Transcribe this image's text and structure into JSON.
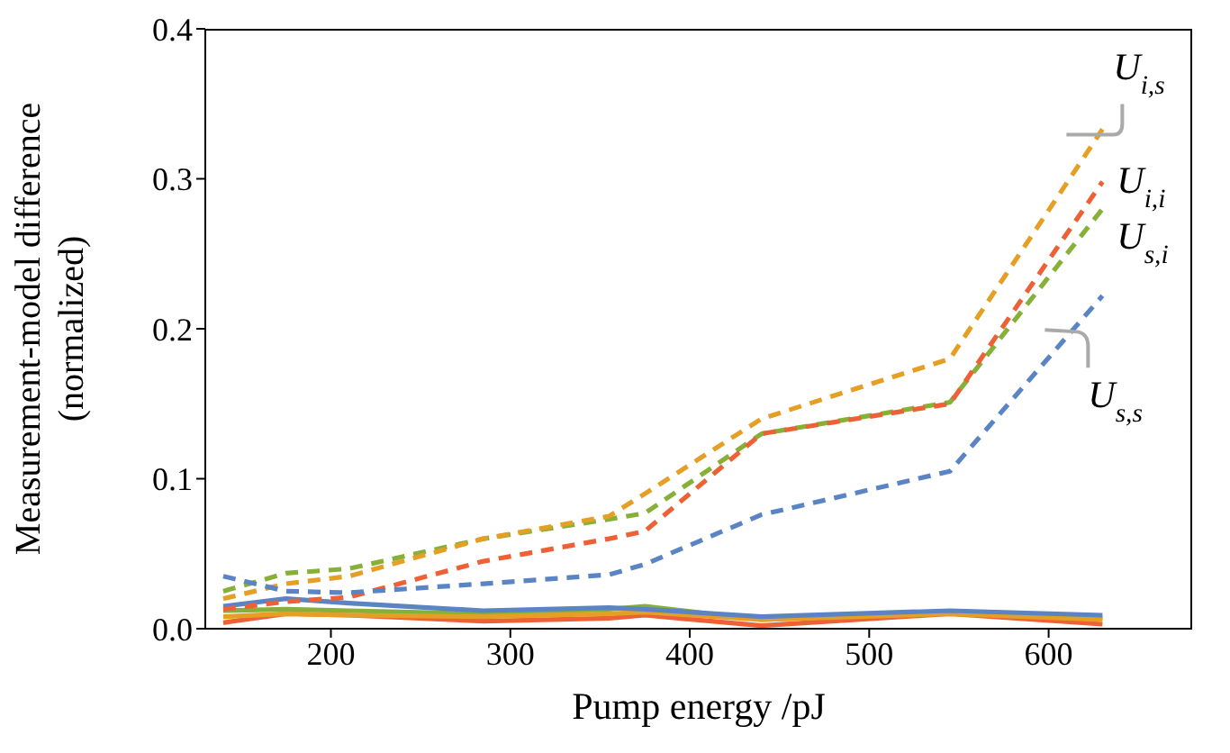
{
  "chart_data": {
    "type": "line",
    "xlabel": "Pump energy /pJ",
    "ylabel": "Measurement-model difference\n(normalized)",
    "x": [
      140,
      175,
      210,
      285,
      355,
      375,
      440,
      545,
      630
    ],
    "xlim": [
      130,
      680
    ],
    "xticks": [
      200,
      300,
      400,
      500,
      600
    ],
    "ylim": [
      0,
      0.4
    ],
    "yticks": [
      {
        "value": 0,
        "label": "0.0"
      },
      0.1,
      0.2,
      0.3,
      0.4
    ],
    "grid": false,
    "legend": false,
    "marker": "none",
    "series": [
      {
        "name": "U$_{s,s}$",
        "color": "#5b84c4",
        "line_style": "dashed",
        "values": [
          0.035,
          0.025,
          0.024,
          0.03,
          0.036,
          0.043,
          0.076,
          0.105,
          0.222
        ]
      },
      {
        "name": "U$_{i,s}$",
        "color": "#e69f25",
        "line_style": "dashed",
        "values": [
          0.02,
          0.03,
          0.035,
          0.06,
          0.075,
          0.09,
          0.14,
          0.18,
          0.333
        ]
      },
      {
        "name": "U$_{i,i}$",
        "color": "#ee6035",
        "line_style": "dashed",
        "values": [
          0.013,
          0.018,
          0.021,
          0.045,
          0.06,
          0.065,
          0.13,
          0.15,
          0.298
        ]
      },
      {
        "name": "U$_{s,i}$",
        "color": "#86b038",
        "line_style": "dashed",
        "values": [
          0.025,
          0.037,
          0.04,
          0.06,
          0.073,
          0.077,
          0.13,
          0.151,
          0.28
        ]
      },
      {
        "color": "#5b84c4",
        "line_style": "solid",
        "values": [
          0.015,
          0.02,
          0.017,
          0.012,
          0.014,
          0.013,
          0.008,
          0.012,
          0.009
        ]
      },
      {
        "color": "#e69f25",
        "line_style": "solid",
        "values": [
          0.008,
          0.01,
          0.009,
          0.008,
          0.01,
          0.011,
          0.006,
          0.01,
          0.006
        ]
      },
      {
        "color": "#86b038",
        "line_style": "solid",
        "values": [
          0.012,
          0.013,
          0.012,
          0.01,
          0.013,
          0.015,
          0.006,
          0.011,
          0.007
        ]
      },
      {
        "color": "#ee6035",
        "line_style": "solid",
        "values": [
          0.004,
          0.01,
          0.009,
          0.005,
          0.007,
          0.009,
          0.002,
          0.01,
          0.003
        ]
      }
    ]
  }
}
